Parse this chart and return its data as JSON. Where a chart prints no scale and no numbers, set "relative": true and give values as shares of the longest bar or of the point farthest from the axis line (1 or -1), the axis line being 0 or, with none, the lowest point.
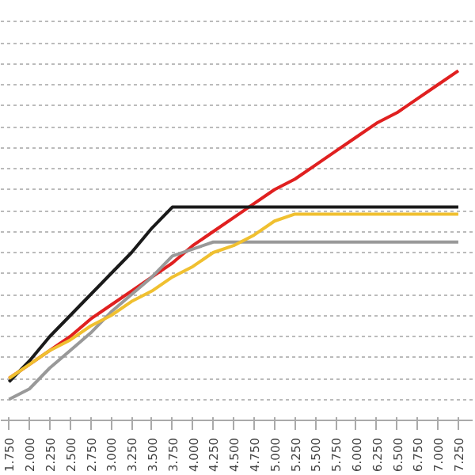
{
  "chart_data": {
    "type": "line",
    "relative": true,
    "grid": "y",
    "marker": "none",
    "line_style": "solid",
    "categories": [
      "1.750",
      "2.000",
      "2.250",
      "2.500",
      "2.750",
      "3.000",
      "3.250",
      "3.500",
      "3.750",
      "4.000",
      "4.250",
      "4.500",
      "4.750",
      "5.000",
      "5.250",
      "5.500",
      "5.750",
      "6.000",
      "6.250",
      "6.500",
      "6.750",
      "7.000",
      "7.250"
    ],
    "series": [
      {
        "color": "#e02020",
        "values": [
          0.12,
          0.16,
          0.2,
          0.24,
          0.29,
          0.33,
          0.37,
          0.41,
          0.45,
          0.5,
          0.54,
          0.58,
          0.62,
          0.66,
          0.69,
          0.73,
          0.77,
          0.81,
          0.85,
          0.88,
          0.92,
          0.96,
          1.0
        ]
      },
      {
        "color": "#1a1a1a",
        "values": [
          0.11,
          0.17,
          0.24,
          0.3,
          0.36,
          0.42,
          0.48,
          0.55,
          0.61,
          0.61,
          0.61,
          0.61,
          0.61,
          0.61,
          0.61,
          0.61,
          0.61,
          0.61,
          0.61,
          0.61,
          0.61,
          0.61,
          0.61
        ]
      },
      {
        "color": "#999999",
        "values": [
          0.06,
          0.09,
          0.15,
          0.2,
          0.25,
          0.31,
          0.36,
          0.41,
          0.47,
          0.49,
          0.51,
          0.51,
          0.51,
          0.51,
          0.51,
          0.51,
          0.51,
          0.51,
          0.51,
          0.51,
          0.51,
          0.51,
          0.51
        ]
      },
      {
        "color": "#f0c030",
        "values": [
          0.12,
          0.16,
          0.2,
          0.23,
          0.27,
          0.3,
          0.34,
          0.37,
          0.41,
          0.44,
          0.48,
          0.5,
          0.53,
          0.57,
          0.59,
          0.59,
          0.59,
          0.59,
          0.59,
          0.59,
          0.59,
          0.59,
          0.59
        ]
      }
    ]
  }
}
